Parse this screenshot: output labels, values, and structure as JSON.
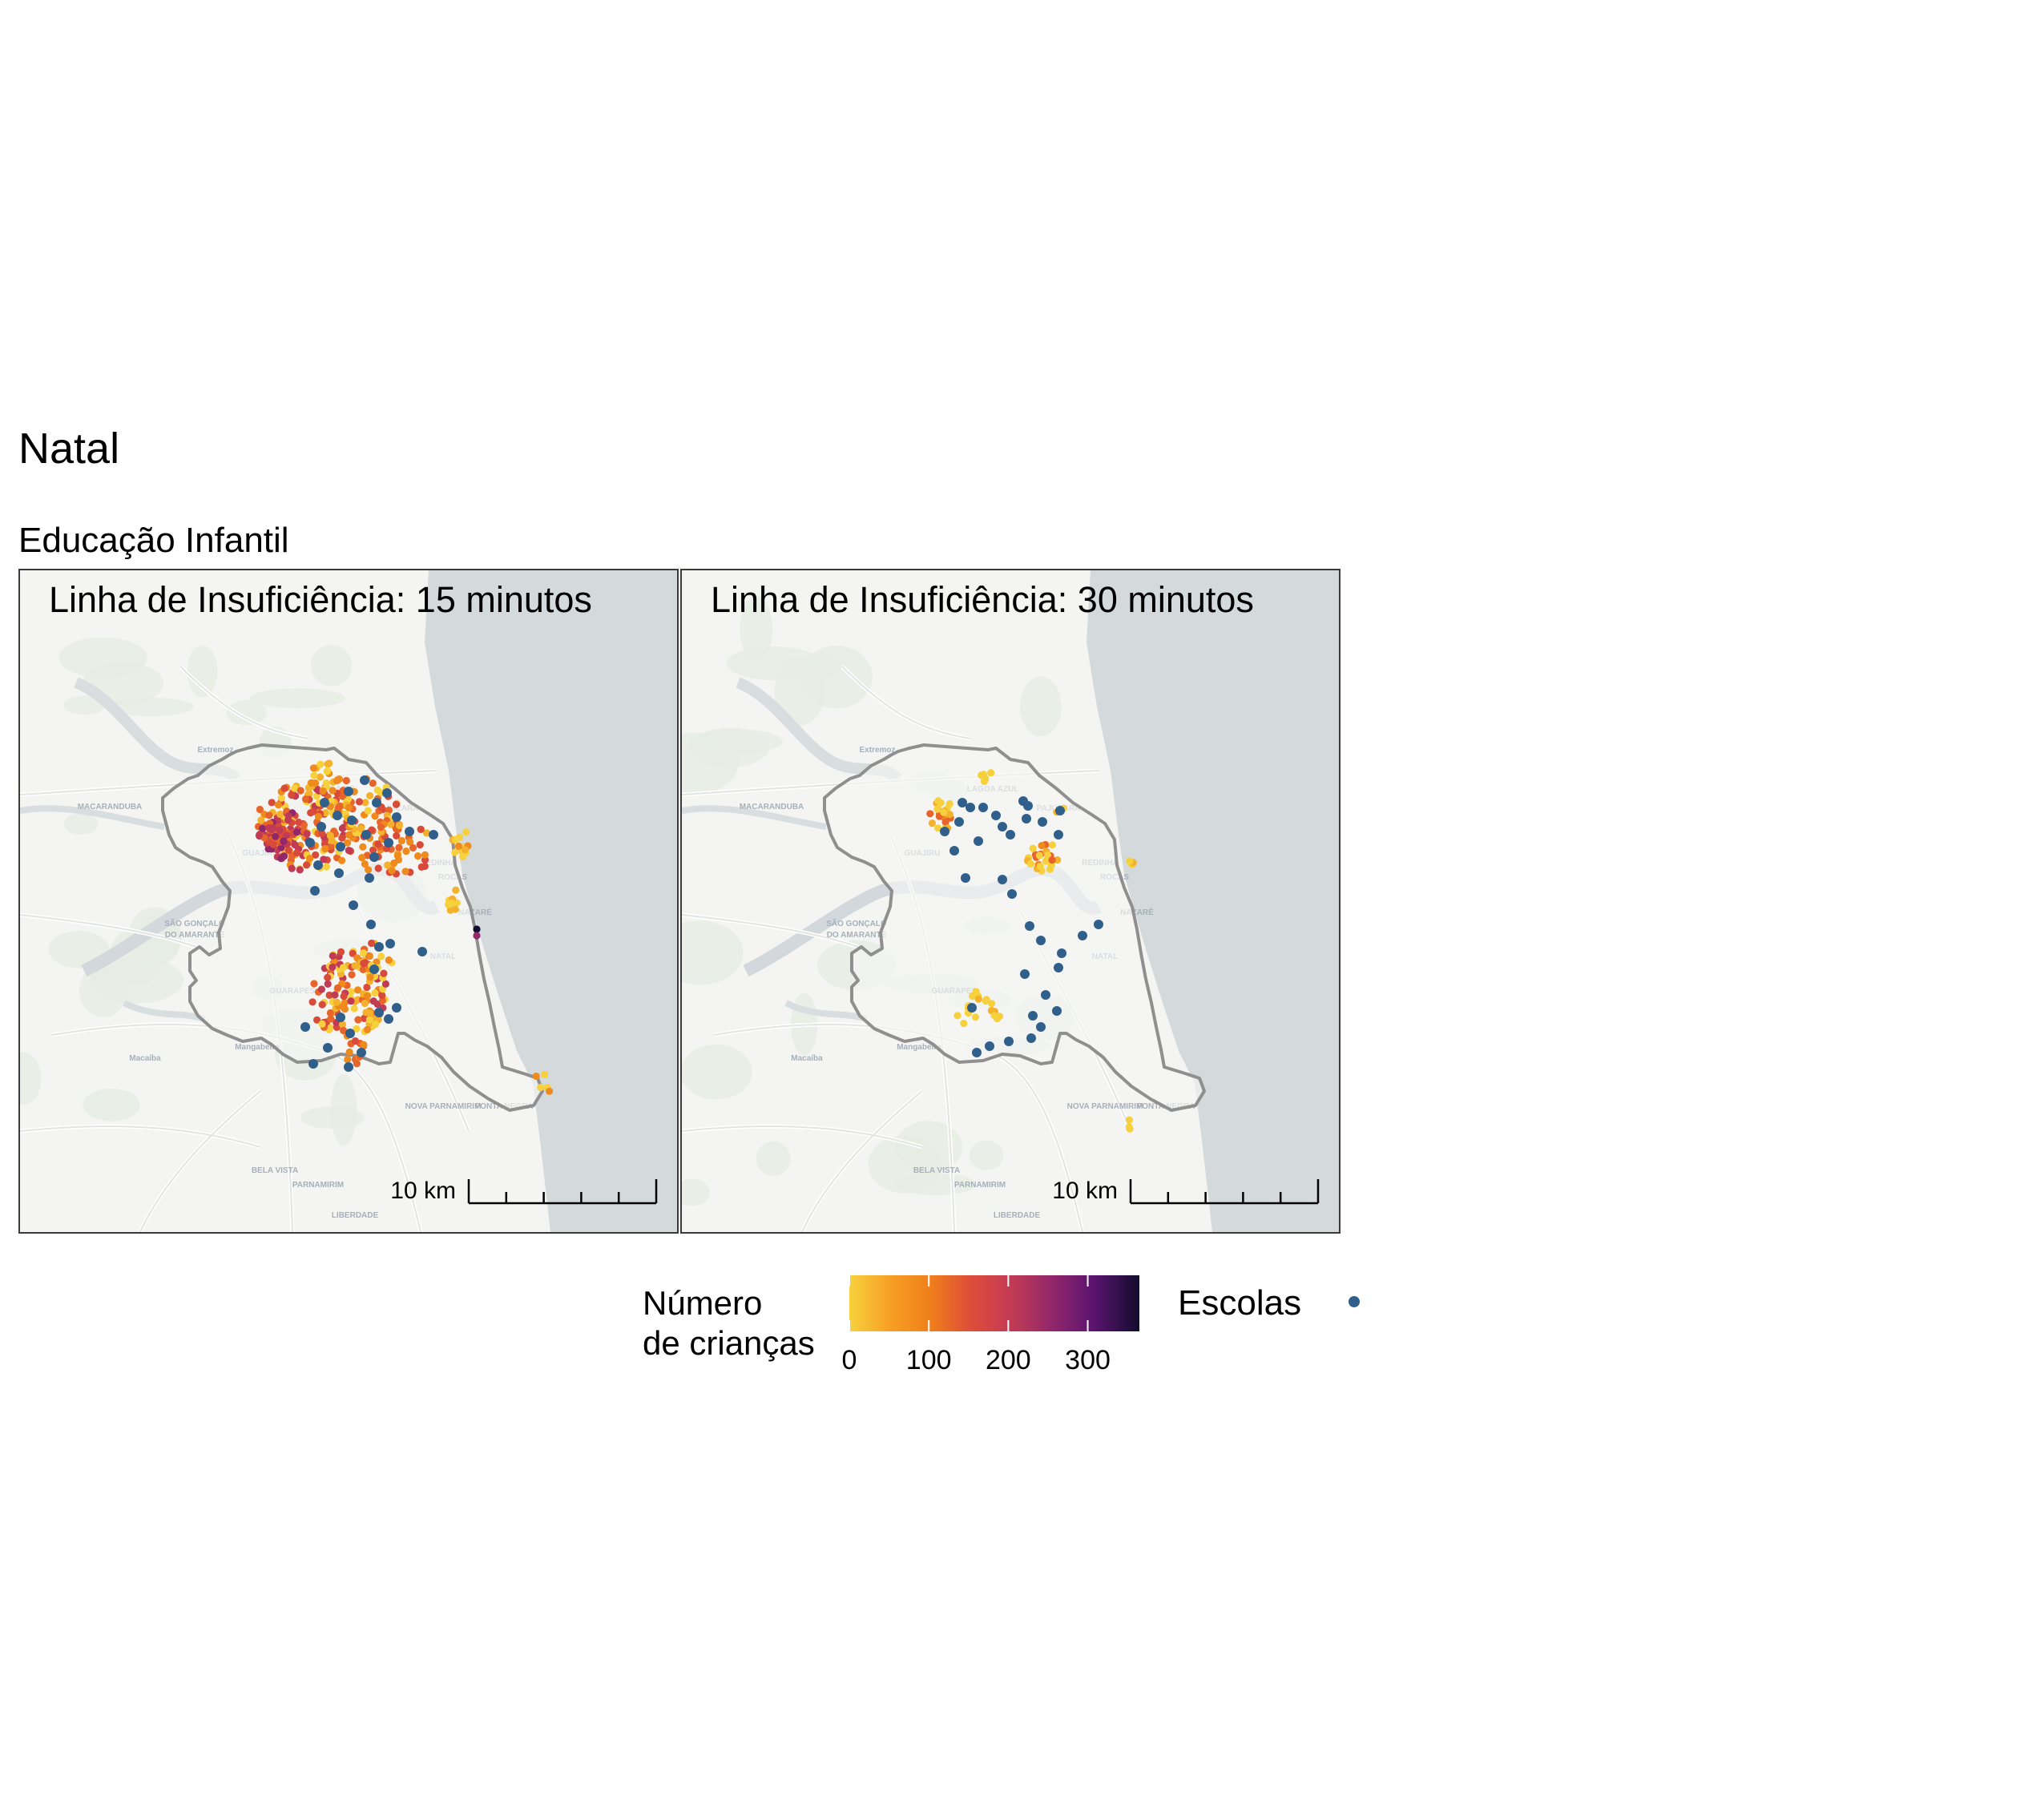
{
  "title": "Natal",
  "subtitle": "Educação Infantil",
  "panels": [
    {
      "label": "Linha de Insuficiência: 15 minutos",
      "scale_label": "10 km"
    },
    {
      "label": "Linha de Insuficiência: 30 minutos",
      "scale_label": "10 km"
    }
  ],
  "basemap_labels": [
    "Extremoz",
    "MACARANDUBA",
    "GUAJIRU",
    "SÃO GONÇALO",
    "DO AMARANTE",
    "NATAL",
    "Macaíba",
    "Mangabeira",
    "PARNAMIRIM",
    "BELA VISTA",
    "NOVA PARNAMIRIM",
    "PONTA NEGRA",
    "LIBERDADE",
    "REDINHA",
    "LAGOA AZUL",
    "ROCAS",
    "NAZARÉ",
    "PAJUÇARA",
    "GUARAPES"
  ],
  "legend": {
    "fill_title_line1": "Número",
    "fill_title_line2": "de crianças",
    "ticks": [
      "0",
      "100",
      "200",
      "300"
    ],
    "tick_values": [
      0,
      100,
      200,
      300
    ],
    "range": [
      0,
      365
    ],
    "points_title": "Escolas"
  },
  "colors": {
    "ocean": "#d4d9dc",
    "land": "#f4f5f3",
    "boundary": "#8f8f8f",
    "school": "#2f5f8a",
    "scale_low": "#f7d13d",
    "scale_high": "#120c2e"
  }
}
